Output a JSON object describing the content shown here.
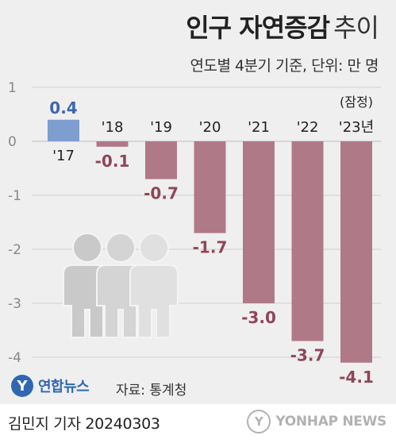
{
  "header": {
    "title_bold": "인구 자연증감",
    "title_light": "추이",
    "subtitle": "연도별 4분기 기준, 단위: 만 명"
  },
  "chart_data": {
    "type": "bar",
    "categories": [
      "'17",
      "'18",
      "'19",
      "'20",
      "'21",
      "'22",
      "'23년"
    ],
    "values": [
      0.4,
      -0.1,
      -0.7,
      -1.7,
      -3.0,
      -3.7,
      -4.1
    ],
    "value_labels": [
      "0.4",
      "-0.1",
      "-0.7",
      "-1.7",
      "-3.0",
      "-3.7",
      "-4.1"
    ],
    "annotation": "(잠정)",
    "annotation_category": "'23년",
    "yticks": [
      1,
      0,
      -1,
      -2,
      -3,
      -4
    ],
    "ytick_labels": [
      "1",
      "0",
      "-1",
      "-2",
      "-3",
      "-4"
    ],
    "ylim": [
      -4.4,
      1.1
    ],
    "grid": true,
    "colors": {
      "positive": "#7e9ed0",
      "negative": "#b07987",
      "positive_label": "#3d66b0",
      "negative_label": "#8e4658",
      "grid": "#cfcfcf",
      "axis_text": "#888888"
    }
  },
  "footer": {
    "logo_left_glyph": "Y",
    "logo_left_text": "연합뉴스",
    "source": "자료: 통계청",
    "byline": "김민지 기자  20240303",
    "logo_right_glyph": "Y",
    "logo_right_text": "YONHAP NEWS"
  },
  "decor": {
    "people_icon": "people-silhouette-icon"
  }
}
